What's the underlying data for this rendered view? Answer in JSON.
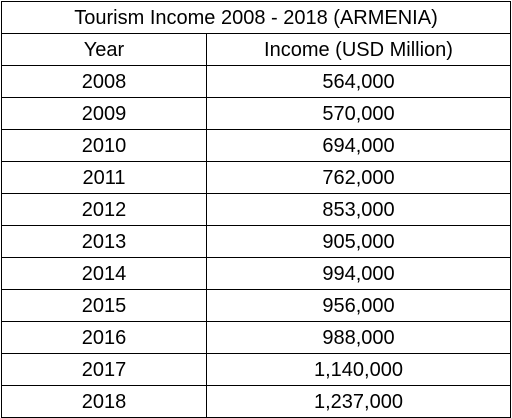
{
  "chart_data": {
    "type": "table",
    "title": "Tourism Income 2008 - 2018 (ARMENIA)",
    "columns": [
      "Year",
      "Income (USD Million)"
    ],
    "rows": [
      [
        "2008",
        "564,000"
      ],
      [
        "2009",
        "570,000"
      ],
      [
        "2010",
        "694,000"
      ],
      [
        "2011",
        "762,000"
      ],
      [
        "2012",
        "853,000"
      ],
      [
        "2013",
        "905,000"
      ],
      [
        "2014",
        "994,000"
      ],
      [
        "2015",
        "956,000"
      ],
      [
        "2016",
        "988,000"
      ],
      [
        "2017",
        "1,140,000"
      ],
      [
        "2018",
        "1,237,000"
      ]
    ],
    "x": [
      2008,
      2009,
      2010,
      2011,
      2012,
      2013,
      2014,
      2015,
      2016,
      2017,
      2018
    ],
    "values": [
      564000,
      570000,
      694000,
      762000,
      853000,
      905000,
      994000,
      956000,
      988000,
      1140000,
      1237000
    ],
    "xlabel": "Year",
    "ylabel": "Income (USD Million)"
  }
}
